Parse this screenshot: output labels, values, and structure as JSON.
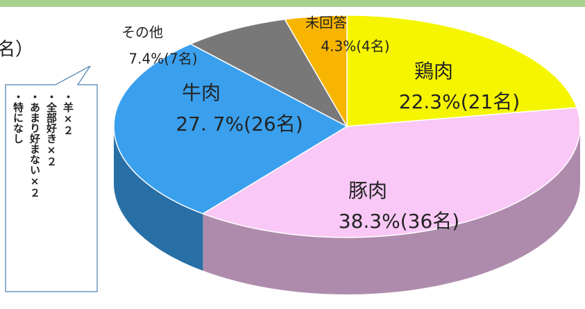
{
  "chart_data": {
    "type": "pie3d",
    "title": "名）",
    "categories": [
      "鶏肉",
      "豚肉",
      "牛肉",
      "その他",
      "未回答"
    ],
    "values": [
      22.3,
      38.3,
      27.7,
      7.4,
      4.3
    ],
    "value_labels": [
      "22.3%(21名)",
      "38.3%(36名)",
      "27. 7%(26名)",
      "7.4%(7名)",
      "4.3%(4名)"
    ],
    "colors": [
      "#f5f500",
      "#f9c8f6",
      "#3aa0ee",
      "#787878",
      "#f7b500"
    ],
    "note": [
      "・羊×２",
      "・全部好き×２",
      "・あまり好まない×２",
      "・特になし"
    ]
  }
}
